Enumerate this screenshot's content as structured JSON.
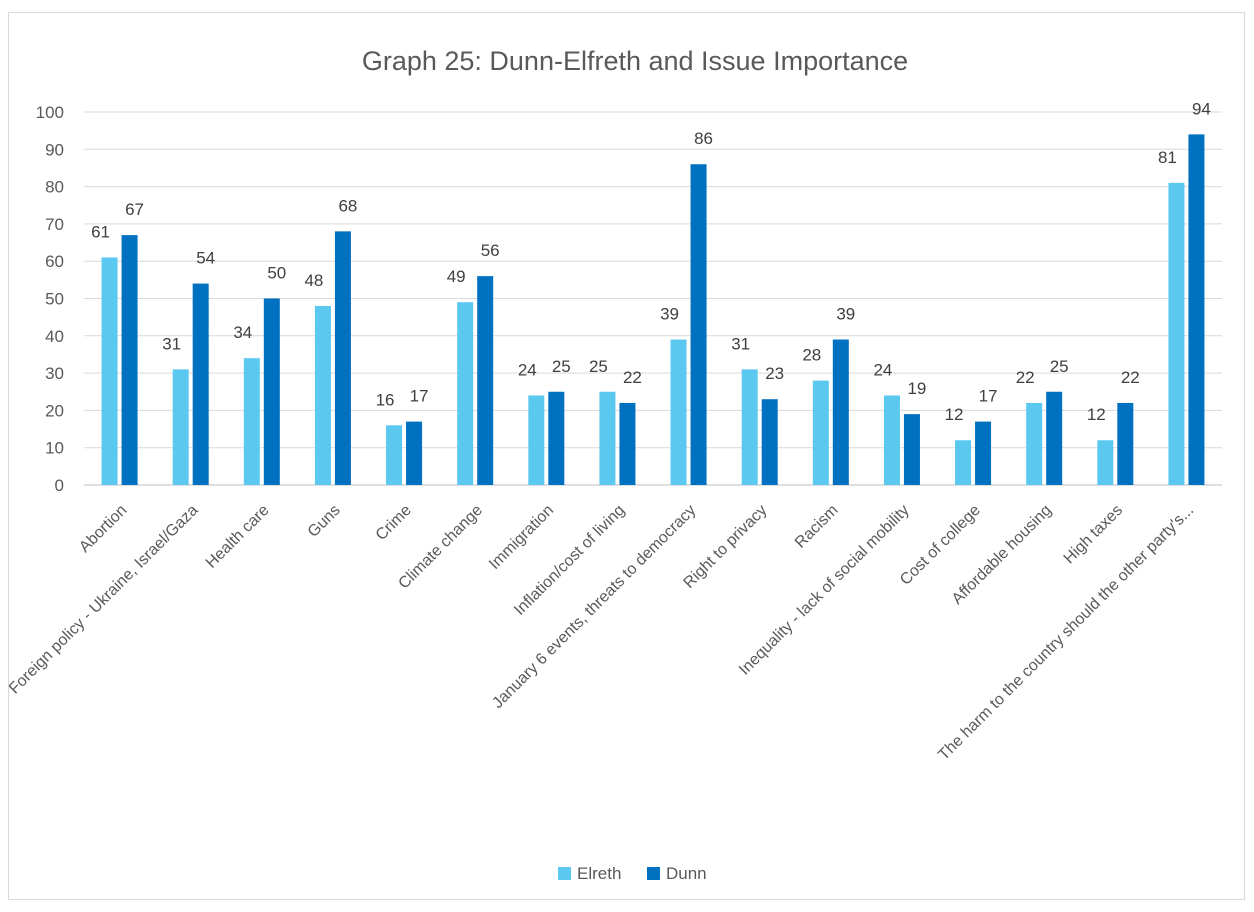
{
  "chart_data": {
    "type": "bar",
    "title": "Graph 25: Dunn-Elfreth and Issue Importance",
    "xlabel": "",
    "ylabel": "",
    "ylim": [
      0,
      100
    ],
    "yticks": [
      0,
      10,
      20,
      30,
      40,
      50,
      60,
      70,
      80,
      90,
      100
    ],
    "grid": true,
    "legend_position": "bottom",
    "categories": [
      "Abortion",
      "Foreign policy - Ukraine, Israel/Gaza",
      "Health care",
      "Guns",
      "Crime",
      "Climate change",
      "Immigration",
      "Inflation/cost of living",
      "January 6 events, threats to democracy",
      "Right to privacy",
      "Racism",
      "Inequality - lack of social mobility",
      "Cost of college",
      "Affordable housing",
      "High taxes",
      "The harm to the country should the other party's..."
    ],
    "series": [
      {
        "name": "Elreth",
        "color": "#5BC8F0",
        "values": [
          61,
          31,
          34,
          48,
          16,
          49,
          24,
          25,
          39,
          31,
          28,
          24,
          12,
          22,
          12,
          81
        ]
      },
      {
        "name": "Dunn",
        "color": "#0070C0",
        "values": [
          67,
          54,
          50,
          68,
          17,
          56,
          25,
          22,
          86,
          23,
          39,
          19,
          17,
          25,
          22,
          94
        ]
      }
    ]
  }
}
